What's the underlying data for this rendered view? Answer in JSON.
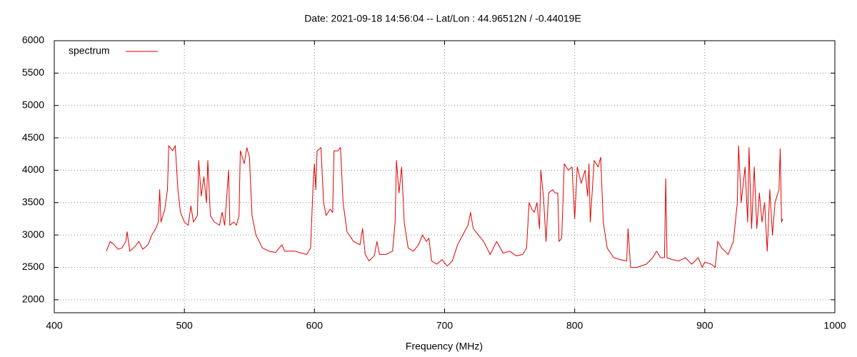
{
  "chart_data": {
    "type": "line",
    "title": "Date: 2021-09-18 14:56:04  --  Lat/Lon : 44.96512N / -0.44019E",
    "x_label": "Frequency (MHz)",
    "x": [
      440,
      443,
      446,
      449,
      452,
      455,
      456,
      458,
      462,
      465,
      468,
      472,
      475,
      478,
      480,
      481,
      482,
      485,
      487,
      488,
      491,
      493,
      495,
      497,
      500,
      503,
      505,
      507,
      510,
      511,
      513,
      515,
      517,
      518,
      520,
      523,
      527,
      529,
      531,
      534,
      535,
      538,
      540,
      542,
      543,
      546,
      548,
      550,
      552,
      555,
      560,
      565,
      570,
      575,
      577,
      585,
      590,
      594,
      597,
      599,
      600,
      601,
      602,
      605,
      607,
      609,
      612,
      614,
      615,
      618,
      620,
      622,
      625,
      630,
      635,
      637,
      639,
      642,
      646,
      648,
      650,
      655,
      660,
      662,
      663,
      665,
      667,
      669,
      672,
      676,
      680,
      683,
      686,
      688,
      690,
      694,
      698,
      702,
      706,
      710,
      714,
      718,
      720,
      722,
      726,
      730,
      735,
      740,
      745,
      750,
      755,
      760,
      763,
      765,
      767,
      769,
      771,
      773,
      774,
      776,
      778,
      780,
      783,
      785,
      787,
      788,
      790,
      792,
      795,
      798,
      800,
      802,
      805,
      808,
      810,
      811,
      812,
      815,
      818,
      820,
      822,
      825,
      830,
      835,
      840,
      841,
      843,
      848,
      855,
      860,
      863,
      866,
      869,
      870,
      871,
      875,
      880,
      885,
      890,
      895,
      898,
      900,
      905,
      908,
      910,
      913,
      918,
      922,
      925,
      926,
      928,
      931,
      933,
      934,
      936,
      938,
      940,
      942,
      944,
      946,
      948,
      950,
      952,
      954,
      957,
      958,
      959,
      960
    ],
    "series": [
      {
        "name": "spectrum",
        "color": "#e00000",
        "values": [
          2750,
          2900,
          2850,
          2780,
          2800,
          2900,
          3050,
          2750,
          2820,
          2900,
          2780,
          2850,
          3000,
          3100,
          3200,
          3700,
          3200,
          3400,
          3700,
          4380,
          4300,
          4380,
          3700,
          3350,
          3200,
          3150,
          3450,
          3200,
          3300,
          4150,
          3600,
          3900,
          3500,
          4150,
          3300,
          3200,
          3150,
          3350,
          3150,
          4000,
          3150,
          3200,
          3150,
          3300,
          4300,
          4100,
          4350,
          4200,
          3300,
          3000,
          2800,
          2750,
          2730,
          2850,
          2750,
          2750,
          2720,
          2700,
          2800,
          3800,
          4100,
          3700,
          4300,
          4350,
          3500,
          3300,
          3400,
          3350,
          4300,
          4300,
          4350,
          3500,
          3050,
          2900,
          2850,
          3100,
          2700,
          2600,
          2680,
          2900,
          2700,
          2700,
          2750,
          3200,
          4150,
          3650,
          4050,
          3200,
          2800,
          2750,
          2850,
          3000,
          2900,
          2950,
          2600,
          2550,
          2620,
          2520,
          2600,
          2850,
          3000,
          3150,
          3350,
          3100,
          3000,
          2900,
          2700,
          2900,
          2720,
          2750,
          2680,
          2700,
          2800,
          3500,
          3400,
          3350,
          3500,
          3100,
          4000,
          3600,
          2900,
          3650,
          3700,
          3650,
          3650,
          2900,
          2950,
          4100,
          4000,
          4050,
          3250,
          4050,
          3800,
          4000,
          3600,
          4100,
          3200,
          4150,
          4050,
          4200,
          3200,
          2800,
          2650,
          2620,
          2600,
          3100,
          2500,
          2500,
          2550,
          2650,
          2750,
          2650,
          2650,
          3870,
          2650,
          2620,
          2600,
          2650,
          2550,
          2650,
          2500,
          2580,
          2550,
          2500,
          2900,
          2800,
          2700,
          2900,
          3500,
          4380,
          3500,
          4050,
          3200,
          4350,
          3100,
          4050,
          3100,
          3650,
          3200,
          3500,
          2750,
          3700,
          3000,
          3500,
          3700,
          4330,
          3200,
          3250
        ]
      }
    ],
    "xlim": [
      400,
      1000
    ],
    "xticks": [
      400,
      500,
      600,
      700,
      800,
      900,
      1000
    ],
    "ylim": [
      1800,
      6000
    ],
    "yticks": [
      2000,
      2500,
      3000,
      3500,
      4000,
      4500,
      5000,
      5500,
      6000
    ],
    "grid": true,
    "legend": "top-left"
  }
}
